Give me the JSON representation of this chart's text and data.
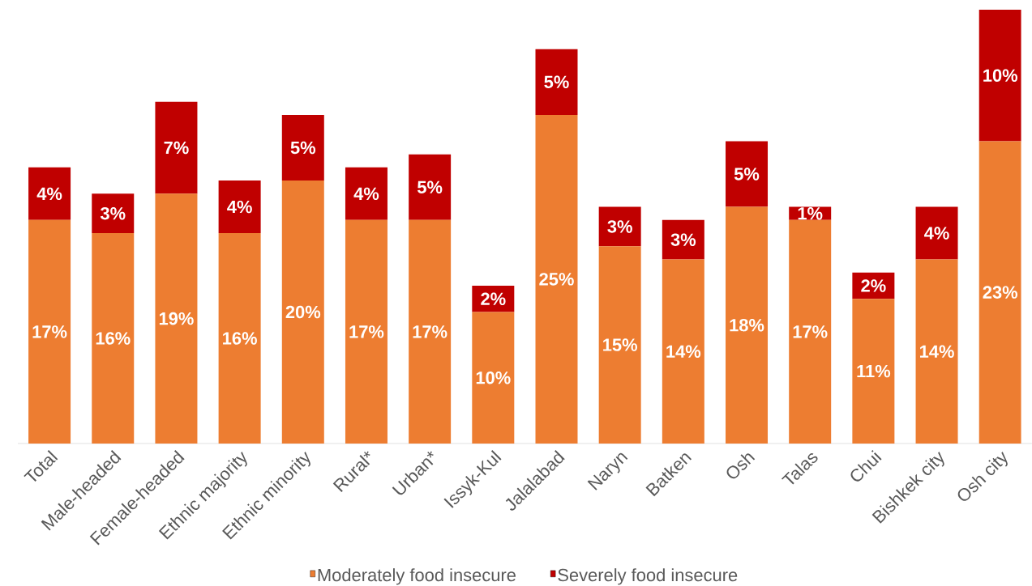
{
  "chart_data": {
    "type": "bar",
    "stacked": true,
    "legend": "bottom",
    "categories": [
      "Total",
      "Male-headed",
      "Female-headed",
      "Ethnic majority",
      "Ethnic minority",
      "Rural*",
      "Urban*",
      "Issyk-Kul",
      "Jalalabad",
      "Naryn",
      "Batken",
      "Osh",
      "Talas",
      "Chui",
      "Bishkek city",
      "Osh city"
    ],
    "series": [
      {
        "name": "Moderately food insecure",
        "color": "#ed7d31",
        "values": [
          17,
          16,
          19,
          16,
          20,
          17,
          17,
          10,
          25,
          15,
          14,
          18,
          17,
          11,
          14,
          23
        ],
        "value_labels": [
          "17%",
          "16%",
          "19%",
          "16%",
          "20%",
          "17%",
          "17%",
          "10%",
          "25%",
          "15%",
          "14%",
          "18%",
          "17%",
          "11%",
          "14%",
          "23%"
        ]
      },
      {
        "name": "Severely food insecure",
        "color": "#c00000",
        "values": [
          4,
          3,
          7,
          4,
          5,
          4,
          5,
          2,
          5,
          3,
          3,
          5,
          1,
          2,
          4,
          10
        ],
        "value_labels": [
          "4%",
          "3%",
          "7%",
          "4%",
          "5%",
          "4%",
          "5%",
          "2%",
          "5%",
          "3%",
          "3%",
          "5%",
          "1%",
          "2%",
          "4%",
          "10%"
        ]
      }
    ]
  }
}
